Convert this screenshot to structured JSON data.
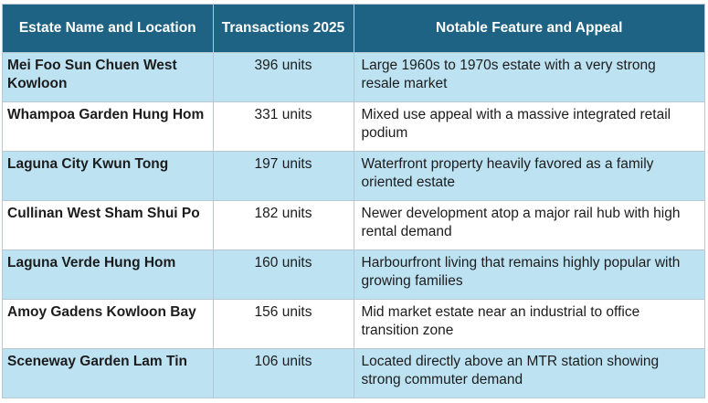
{
  "table": {
    "headers": {
      "estate": "Estate Name and Location",
      "transactions": "Transactions 2025",
      "feature": "Notable Feature and Appeal"
    },
    "rows": [
      {
        "estate": "Mei Foo Sun Chuen West Kowloon",
        "transactions": "396 units",
        "feature": "Large 1960s to 1970s estate with a very strong resale market"
      },
      {
        "estate": "Whampoa Garden Hung Hom",
        "transactions": "331 units",
        "feature": "Mixed use appeal with a massive integrated retail podium"
      },
      {
        "estate": "Laguna City Kwun Tong",
        "transactions": "197 units",
        "feature": "Waterfront property heavily favored as a family oriented estate"
      },
      {
        "estate": "Cullinan West Sham Shui Po",
        "transactions": "182 units",
        "feature": "Newer development atop a major rail hub with high rental demand"
      },
      {
        "estate": "Laguna Verde Hung Hom",
        "transactions": "160 units",
        "feature": "Harbourfront living that remains highly popular with growing families"
      },
      {
        "estate": "Amoy Gadens Kowloon Bay",
        "transactions": "156 units",
        "feature": "Mid market estate near an industrial to office transition zone"
      },
      {
        "estate": "Sceneway Garden Lam Tin",
        "transactions": "106 units",
        "feature": "Located directly above an MTR station showing strong commuter demand"
      }
    ]
  },
  "colors": {
    "header_bg": "#1f6384",
    "header_text": "#ffffff",
    "row_alt_bg": "#bde3f3",
    "row_bg": "#ffffff",
    "grid_line": "#b9c7d2"
  }
}
